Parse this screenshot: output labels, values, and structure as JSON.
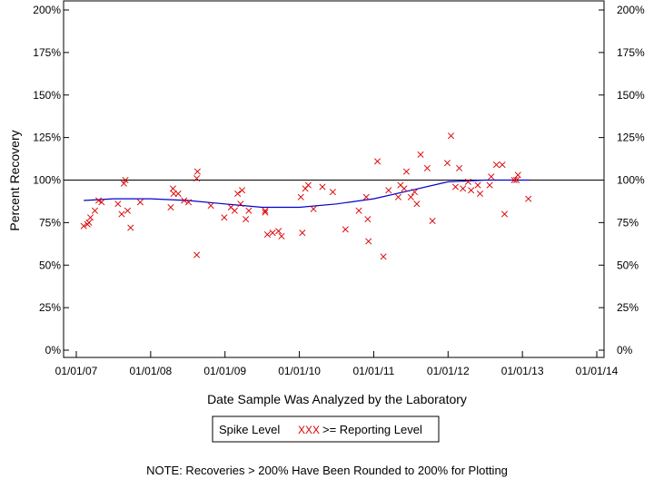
{
  "chart_data": {
    "type": "scatter",
    "title": "",
    "xlabel": "Date Sample Was Analyzed by the Laboratory",
    "ylabel": "Percent Recovery",
    "xlim": [
      2007.0,
      2014.0
    ],
    "ylim": [
      0,
      200
    ],
    "x_ticks": [
      {
        "value": 2007.0,
        "label": "01/01/07"
      },
      {
        "value": 2008.0,
        "label": "01/01/08"
      },
      {
        "value": 2009.0,
        "label": "01/01/09"
      },
      {
        "value": 2010.0,
        "label": "01/01/10"
      },
      {
        "value": 2011.0,
        "label": "01/01/11"
      },
      {
        "value": 2012.0,
        "label": "01/01/12"
      },
      {
        "value": 2013.0,
        "label": "01/01/13"
      },
      {
        "value": 2014.0,
        "label": "01/01/14"
      }
    ],
    "y_ticks": [
      {
        "value": 0,
        "label": "0%"
      },
      {
        "value": 25,
        "label": "25%"
      },
      {
        "value": 50,
        "label": "50%"
      },
      {
        "value": 75,
        "label": "75%"
      },
      {
        "value": 100,
        "label": "100%"
      },
      {
        "value": 125,
        "label": "125%"
      },
      {
        "value": 150,
        "label": "150%"
      },
      {
        "value": 175,
        "label": "175%"
      },
      {
        "value": 200,
        "label": "200%"
      }
    ],
    "reference_line": {
      "y": 100,
      "color": "#000000"
    },
    "series": [
      {
        "name": "Spike Level >= Reporting Level",
        "marker": "x",
        "color": "#dd0000",
        "x": [
          2007.1,
          2007.15,
          2007.17,
          2007.19,
          2007.25,
          2007.3,
          2007.34,
          2007.56,
          2007.61,
          2007.64,
          2007.66,
          2007.69,
          2007.73,
          2007.86,
          2008.27,
          2008.3,
          2008.31,
          2008.37,
          2008.45,
          2008.51,
          2008.62,
          2008.62,
          2008.63,
          2008.81,
          2008.99,
          2009.08,
          2009.13,
          2009.17,
          2009.21,
          2009.23,
          2009.28,
          2009.32,
          2009.54,
          2009.54,
          2009.57,
          2009.64,
          2009.72,
          2009.76,
          2010.02,
          2010.04,
          2010.08,
          2010.12,
          2010.19,
          2010.31,
          2010.45,
          2010.62,
          2010.8,
          2010.9,
          2010.92,
          2010.93,
          2011.05,
          2011.13,
          2011.2,
          2011.33,
          2011.36,
          2011.41,
          2011.44,
          2011.5,
          2011.55,
          2011.58,
          2011.63,
          2011.72,
          2011.79,
          2011.99,
          2012.04,
          2012.1,
          2012.15,
          2012.2,
          2012.27,
          2012.31,
          2012.4,
          2012.43,
          2012.56,
          2012.58,
          2012.65,
          2012.73,
          2012.76,
          2012.89,
          2012.92,
          2012.94,
          2013.08
        ],
        "y": [
          73,
          74,
          75,
          78,
          82,
          88,
          87,
          86,
          80,
          98,
          100,
          82,
          72,
          87,
          84,
          95,
          92,
          92,
          88,
          87,
          56,
          101,
          105,
          85,
          78,
          84,
          82,
          92,
          86,
          94,
          77,
          82,
          82,
          81,
          68,
          69,
          70,
          67,
          90,
          69,
          95,
          97,
          83,
          96,
          93,
          71,
          82,
          90,
          77,
          64,
          111,
          55,
          94,
          90,
          97,
          95,
          105,
          90,
          93,
          86,
          115,
          107,
          76,
          110,
          126,
          96,
          107,
          95,
          99,
          94,
          97,
          92,
          97,
          102,
          109,
          109,
          80,
          100,
          100,
          103,
          89
        ]
      },
      {
        "name": "Trend",
        "type": "line",
        "color": "#0000cc",
        "x": [
          2007.1,
          2007.5,
          2008.0,
          2008.5,
          2009.0,
          2009.5,
          2010.0,
          2010.5,
          2011.0,
          2011.5,
          2012.0,
          2012.5,
          2013.0,
          2013.1
        ],
        "y": [
          88,
          89,
          89,
          88,
          86,
          84,
          84,
          86,
          89,
          94,
          99,
          100,
          100,
          100
        ]
      }
    ],
    "legend": {
      "placement": "bottom-center",
      "label": "Spike Level",
      "marker_text": "XXX",
      "entry": ">= Reporting Level"
    },
    "note": "NOTE: Recoveries > 200% Have Been Rounded to 200% for Plotting"
  }
}
